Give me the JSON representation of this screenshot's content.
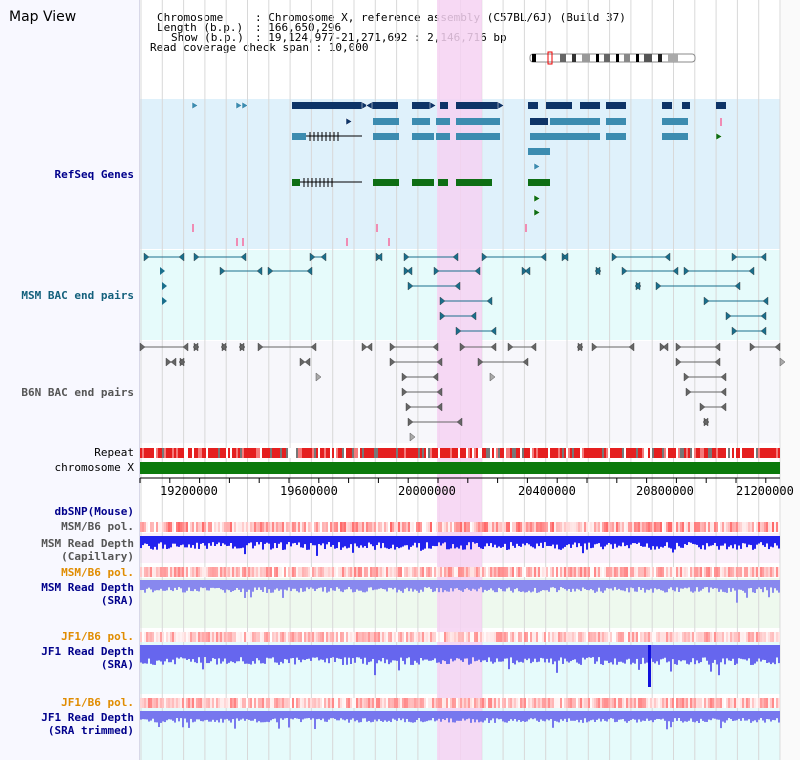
{
  "title": "Map View",
  "header": {
    "chromosome_key": "Chromosome",
    "chromosome_val": ": Chromosome X, reference assembly (C57BL/6J) (Build 37)",
    "length_key": "Length (b.p.)",
    "length_val": ": 166,650,296",
    "show_key": "Show (b.p.)",
    "show_val": ": 19,124,977-21,271,692 : 2,146,716 bp",
    "coverage": "Read coverage check span : 10,000"
  },
  "tracks": {
    "refseq": "RefSeq Genes",
    "msm_bac": "MSM BAC end pairs",
    "b6n_bac": "B6N BAC end pairs",
    "repeat": "Repeat",
    "chromosome": "chromosome X",
    "dbsnp": "dbSNP(Mouse)",
    "msm_b6_pol_1": "MSM/B6 pol.",
    "msm_depth_cap_1": "MSM Read Depth",
    "msm_depth_cap_2": "(Capillary)",
    "msm_b6_pol_2": "MSM/B6 pol.",
    "msm_depth_sra_1": "MSM Read Depth",
    "msm_depth_sra_2": "(SRA)",
    "jf1_b6_pol_1": "JF1/B6 pol.",
    "jf1_depth_sra_1": "JF1 Read Depth",
    "jf1_depth_sra_2": "(SRA)",
    "jf1_b6_pol_2": "JF1/B6 pol.",
    "jf1_depth_trim_1": "JF1 Read Depth",
    "jf1_depth_trim_2": "(SRA trimmed)"
  },
  "ruler": {
    "ticks": [
      "19200000",
      "19600000",
      "20000000",
      "20400000",
      "20800000",
      "21200000"
    ]
  },
  "colors": {
    "refseq_bg": "#dff1fb",
    "msm_bg": "#e6fbfb",
    "b6n_bg": "#f5f5fb",
    "highlight": "#f6d2f2",
    "refseq_dark": "#0e3467",
    "refseq_mid": "#3c8cb0",
    "refseq_green": "#0e6e14",
    "chrom_green": "#0b7a0b",
    "label_blue": "#00008b",
    "label_orange": "#e08c00",
    "label_teal": "#13607c",
    "label_grey": "#555555"
  }
}
